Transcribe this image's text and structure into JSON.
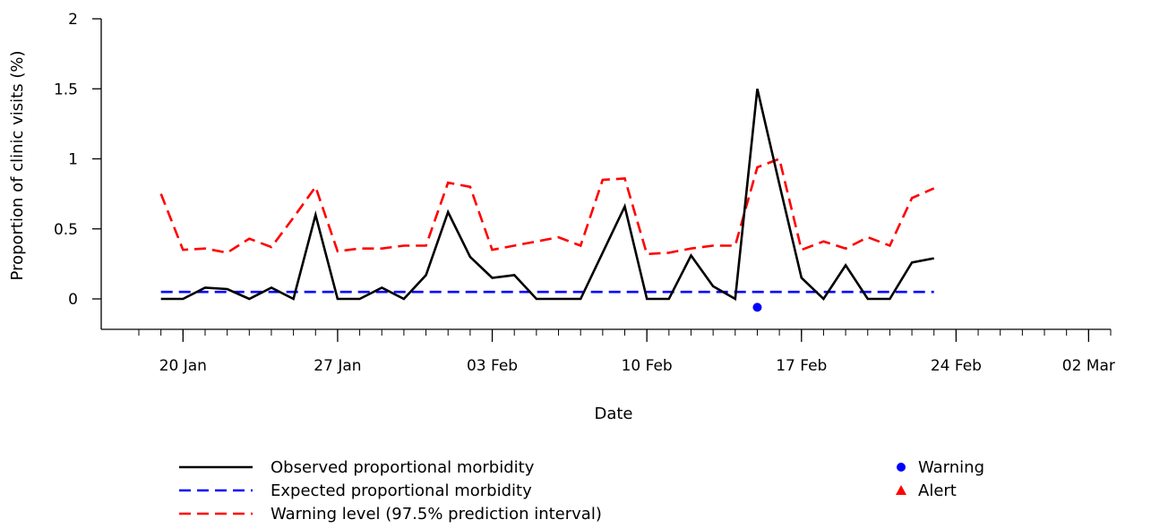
{
  "chart_data": {
    "type": "line",
    "xlabel": "Date",
    "ylabel": "Proportion of clinic visits (%)",
    "ylim": [
      -0.2,
      2.1
    ],
    "xlim": [
      "2025-01-18",
      "2025-03-03"
    ],
    "yticks": [
      0,
      0.5,
      1,
      1.5,
      2
    ],
    "ytick_labels": [
      "0",
      "0.5",
      "1",
      "1.5",
      "2"
    ],
    "xticks": [
      "2025-01-20",
      "2025-01-27",
      "2025-02-03",
      "2025-02-10",
      "2025-02-17",
      "2025-02-24",
      "2025-03-02"
    ],
    "xtick_labels": [
      "20 Jan",
      "27 Jan",
      "03 Feb",
      "10 Feb",
      "17 Feb",
      "24 Feb",
      "02 Mar"
    ],
    "grid": false,
    "x": [
      "2025-01-19",
      "2025-01-20",
      "2025-01-21",
      "2025-01-22",
      "2025-01-23",
      "2025-01-24",
      "2025-01-25",
      "2025-01-26",
      "2025-01-27",
      "2025-01-28",
      "2025-01-29",
      "2025-01-30",
      "2025-01-31",
      "2025-02-01",
      "2025-02-02",
      "2025-02-03",
      "2025-02-04",
      "2025-02-05",
      "2025-02-06",
      "2025-02-07",
      "2025-02-08",
      "2025-02-09",
      "2025-02-10",
      "2025-02-11",
      "2025-02-12",
      "2025-02-13",
      "2025-02-14",
      "2025-02-15",
      "2025-02-16",
      "2025-02-17",
      "2025-02-18",
      "2025-02-19",
      "2025-02-20",
      "2025-02-21",
      "2025-02-22",
      "2025-02-23"
    ],
    "series": [
      {
        "name": "Observed proportional morbidity",
        "color": "#000000",
        "style": "solid",
        "values": [
          0,
          0,
          0.08,
          0.07,
          0,
          0.08,
          0,
          0.6,
          0,
          0,
          0.08,
          0,
          0.17,
          0.62,
          0.3,
          0.15,
          0.17,
          0,
          0,
          0,
          0.33,
          0.66,
          0,
          0,
          0.31,
          0.09,
          0,
          1.5,
          0.82,
          0.15,
          0,
          0.24,
          0,
          0,
          0.26,
          0.29
        ]
      },
      {
        "name": "Expected proportional morbidity",
        "color": "#0000ff",
        "style": "dashed",
        "values": [
          0.05,
          0.05,
          0.05,
          0.05,
          0.05,
          0.05,
          0.05,
          0.05,
          0.05,
          0.05,
          0.05,
          0.05,
          0.05,
          0.05,
          0.05,
          0.05,
          0.05,
          0.05,
          0.05,
          0.05,
          0.05,
          0.05,
          0.05,
          0.05,
          0.05,
          0.05,
          0.05,
          0.05,
          0.05,
          0.05,
          0.05,
          0.05,
          0.05,
          0.05,
          0.05,
          0.05
        ]
      },
      {
        "name": "Warning level (97.5% prediction interval)",
        "color": "#ff0000",
        "style": "dashed",
        "values": [
          0.75,
          0.35,
          0.36,
          0.33,
          0.43,
          0.37,
          0.58,
          0.8,
          0.34,
          0.36,
          0.36,
          0.38,
          0.38,
          0.83,
          0.8,
          0.35,
          0.38,
          0.41,
          0.44,
          0.38,
          0.85,
          0.86,
          0.32,
          0.33,
          0.36,
          0.38,
          0.38,
          0.94,
          1.0,
          0.35,
          0.41,
          0.36,
          0.44,
          0.38,
          0.72,
          0.79
        ]
      }
    ],
    "markers": [
      {
        "name": "Warning",
        "shape": "circle",
        "color": "#0000ff",
        "points": [
          {
            "x": "2025-02-15",
            "y": -0.06
          }
        ]
      },
      {
        "name": "Alert",
        "shape": "triangle",
        "color": "#ff0000",
        "points": []
      }
    ]
  },
  "legend": {
    "lines": [
      {
        "label": "Observed proportional morbidity",
        "color": "#000000",
        "dashed": false
      },
      {
        "label": "Expected proportional morbidity",
        "color": "#0000ff",
        "dashed": true
      },
      {
        "label": "Warning level (97.5% prediction interval)",
        "color": "#ff0000",
        "dashed": true
      }
    ],
    "markers": [
      {
        "label": "Warning",
        "shape": "circle",
        "color": "#0000ff"
      },
      {
        "label": "Alert",
        "shape": "triangle",
        "color": "#ff0000"
      }
    ]
  }
}
